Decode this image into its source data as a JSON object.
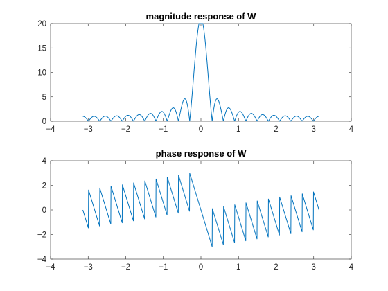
{
  "figure": {
    "background": "#ffffff",
    "line_color": "#0072bd"
  },
  "chart_data": [
    {
      "type": "line",
      "title": "magnitude response of W",
      "xlabel": "",
      "ylabel": "",
      "xlim": [
        -4,
        4
      ],
      "ylim": [
        0,
        20
      ],
      "xticks": [
        -4,
        -3,
        -2,
        -1,
        0,
        1,
        2,
        3,
        4
      ],
      "yticks": [
        0,
        5,
        10,
        15,
        20
      ],
      "grid": false,
      "series": [
        {
          "function": "abs(sin(10.5*w)/sin(w/2))",
          "x_range": [
            -3.1416,
            3.1416
          ],
          "samples": 1200
        }
      ]
    },
    {
      "type": "line",
      "title": "phase response of W",
      "xlabel": "",
      "ylabel": "",
      "xlim": [
        -4,
        4
      ],
      "ylim": [
        -4,
        4
      ],
      "xticks": [
        -4,
        -3,
        -2,
        -1,
        0,
        1,
        2,
        3,
        4
      ],
      "yticks": [
        -4,
        -2,
        0,
        2,
        4
      ],
      "grid": false,
      "series": [
        {
          "function": "angle(exp(-j*10*w)*sin(10.5*w)/sin(w/2))",
          "x_range": [
            -3.1416,
            3.1416
          ],
          "samples": 1200
        }
      ]
    }
  ]
}
